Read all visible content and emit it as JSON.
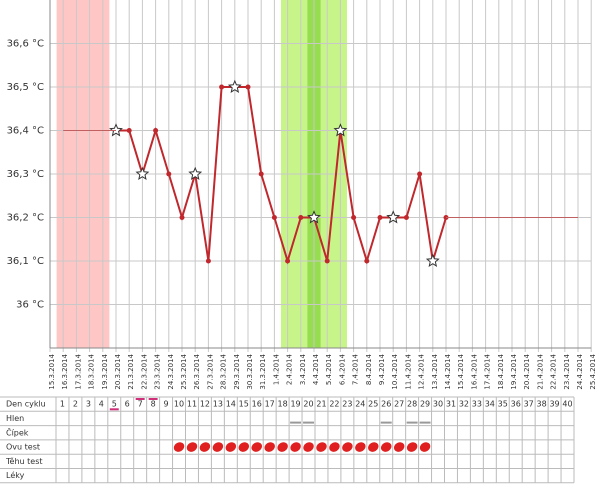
{
  "chart_data": {
    "type": "line",
    "categories": [
      "15.3.2014",
      "16.3.2014",
      "17.3.2014",
      "18.3.2014",
      "19.3.2014",
      "20.3.2014",
      "21.3.2014",
      "22.3.2014",
      "23.3.2014",
      "24.3.2014",
      "25.3.2014",
      "26.3.2014",
      "27.3.2014",
      "28.3.2014",
      "29.3.2014",
      "30.3.2014",
      "31.3.2014",
      "1.4.2014",
      "2.4.2014",
      "3.4.2014",
      "4.4.2014",
      "5.4.2014",
      "6.4.2014",
      "7.4.2014",
      "8.4.2014",
      "9.4.2014",
      "10.4.2014",
      "11.4.2014",
      "12.4.2014",
      "13.4.2014",
      "14.4.2014",
      "15.4.2014",
      "16.4.2014",
      "17.4.2014",
      "18.4.2014",
      "19.4.2014",
      "20.4.2014",
      "21.4.2014",
      "22.4.2014",
      "23.4.2014",
      "24.4.2014",
      "25.4.2014"
    ],
    "series": [
      {
        "color": "#c0282d",
        "values": [
          null,
          null,
          null,
          null,
          null,
          36.4,
          36.4,
          36.3,
          36.4,
          36.3,
          36.2,
          36.3,
          36.1,
          36.5,
          36.5,
          36.5,
          36.3,
          36.2,
          36.1,
          36.2,
          36.2,
          36.1,
          36.4,
          36.2,
          36.1,
          36.2,
          36.2,
          36.2,
          36.3,
          36.1,
          36.2,
          null,
          null,
          null,
          null,
          null,
          null,
          null,
          null,
          null,
          null,
          null
        ],
        "markers": [
          null,
          null,
          null,
          null,
          null,
          "star",
          "dot",
          "star",
          "dot",
          "dot",
          "dot",
          "star",
          "dot",
          "dot",
          "star",
          "dot",
          "dot",
          "dot",
          "dot",
          "dot",
          "star",
          "dot",
          "star",
          "dot",
          "dot",
          "dot",
          "star",
          "dot",
          "dot",
          "star",
          "dot",
          null,
          null,
          null,
          null,
          null,
          null,
          null,
          null,
          null,
          null,
          null
        ]
      },
      {
        "color": "#c06060",
        "thin": true,
        "values": [
          null,
          36.4,
          36.4,
          36.4,
          36.4,
          36.4,
          null,
          null,
          null,
          null,
          null,
          null,
          null,
          null,
          null,
          null,
          null,
          null,
          null,
          null,
          null,
          null,
          null,
          null,
          null,
          null,
          null,
          null,
          null,
          null,
          36.2,
          36.2,
          36.2,
          36.2,
          36.2,
          36.2,
          36.2,
          36.2,
          36.2,
          36.2,
          36.2,
          null
        ]
      }
    ],
    "bands": [
      {
        "from": "16.3.2014",
        "to": "19.3.2014",
        "color": "#ffc6c6"
      },
      {
        "from": "2.4.2014",
        "to": "6.4.2014",
        "color": "#c8f58a"
      },
      {
        "from": "4.4.2014",
        "to": "4.4.2014",
        "color": "#96dd50"
      }
    ],
    "ylim": [
      35.9,
      36.7
    ],
    "yticks": [
      {
        "value": 36,
        "label": "36 °C"
      },
      {
        "value": 36.1,
        "label": "36,1 °C"
      },
      {
        "value": 36.2,
        "label": "36,2 °C"
      },
      {
        "value": 36.3,
        "label": "36,3 °C"
      },
      {
        "value": 36.4,
        "label": "36,4 °C"
      },
      {
        "value": 36.5,
        "label": "36,5 °C"
      },
      {
        "value": 36.6,
        "label": "36,6 °C"
      }
    ],
    "grid": true
  },
  "table": {
    "day_numbers": [
      1,
      2,
      3,
      4,
      5,
      6,
      7,
      8,
      9,
      10,
      11,
      12,
      13,
      14,
      15,
      16,
      17,
      18,
      19,
      20,
      21,
      22,
      23,
      24,
      25,
      26,
      27,
      28,
      29,
      30,
      31,
      32,
      33,
      34,
      35,
      36,
      37,
      38,
      39,
      40
    ],
    "highlighted_days": [
      5,
      7,
      8
    ],
    "rows": [
      {
        "label": "Den cyklu"
      },
      {
        "label": "Hlen",
        "marked_days": [
          19,
          20,
          26,
          28,
          29
        ]
      },
      {
        "label": "Čípek"
      },
      {
        "label": "Ovu test",
        "marked_days": [
          10,
          11,
          12,
          13,
          14,
          15,
          16,
          17,
          18,
          19,
          20,
          21,
          22,
          23,
          24,
          25,
          26,
          27,
          28,
          29
        ]
      },
      {
        "label": "Těhu test"
      },
      {
        "label": "Léky"
      }
    ]
  }
}
